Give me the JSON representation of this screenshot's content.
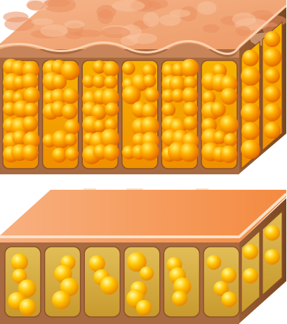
{
  "diagram": {
    "top_block": {
      "state": "swollen",
      "columns": 6,
      "side_columns": 2,
      "colors": {
        "surface": "#f0a478",
        "surface_light": "#f8c6a0",
        "membrane": "#a86a40",
        "membrane_dark": "#8a5228",
        "cell_fill": "#f5a800",
        "globule": "#ffb000",
        "globule_highlight": "#ffe060",
        "globule_shadow": "#e07000"
      }
    },
    "bottom_block": {
      "state": "reduced",
      "columns": 6,
      "side_columns": 2,
      "colors": {
        "surface": "#f59a5a",
        "surface_light": "#f8c8a0",
        "membrane": "#a86a40",
        "cell_fill": "#d8b040",
        "globule": "#ffc200",
        "globule_highlight": "#fff080"
      }
    },
    "arrows": {
      "count": 3,
      "direction": "down",
      "color": "#fbe3c8"
    }
  }
}
